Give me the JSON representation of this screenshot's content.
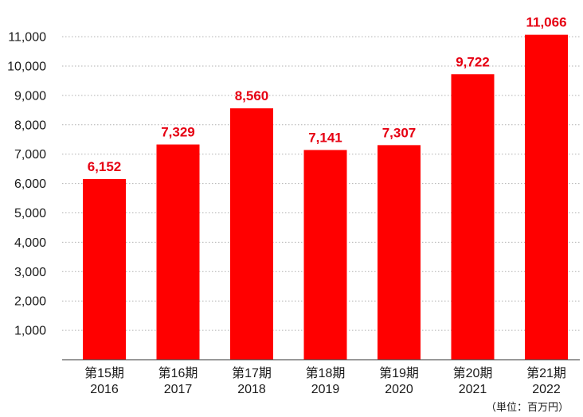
{
  "chart_data": {
    "type": "bar",
    "categories": [
      [
        "第15期",
        "2016"
      ],
      [
        "第16期",
        "2017"
      ],
      [
        "第17期",
        "2018"
      ],
      [
        "第18期",
        "2019"
      ],
      [
        "第19期",
        "2020"
      ],
      [
        "第20期",
        "2021"
      ],
      [
        "第21期",
        "2022"
      ]
    ],
    "values": [
      6152,
      7329,
      8560,
      7141,
      7307,
      9722,
      11066
    ],
    "data_labels": [
      "6,152",
      "7,329",
      "8,560",
      "7,141",
      "7,307",
      "9,722",
      "11,066"
    ],
    "y_ticks": [
      "1,000",
      "2,000",
      "3,000",
      "4,000",
      "5,000",
      "6,000",
      "7,000",
      "8,000",
      "9,000",
      "10,000",
      "11,000"
    ],
    "ylim": [
      0,
      11000
    ],
    "grid": "horizontal-dotted",
    "unit_note": "（単位：百万円）",
    "colors": {
      "bar": "#ff0000",
      "label": "#e60012",
      "grid": "#b0b0b0",
      "axis": "#333333"
    }
  }
}
